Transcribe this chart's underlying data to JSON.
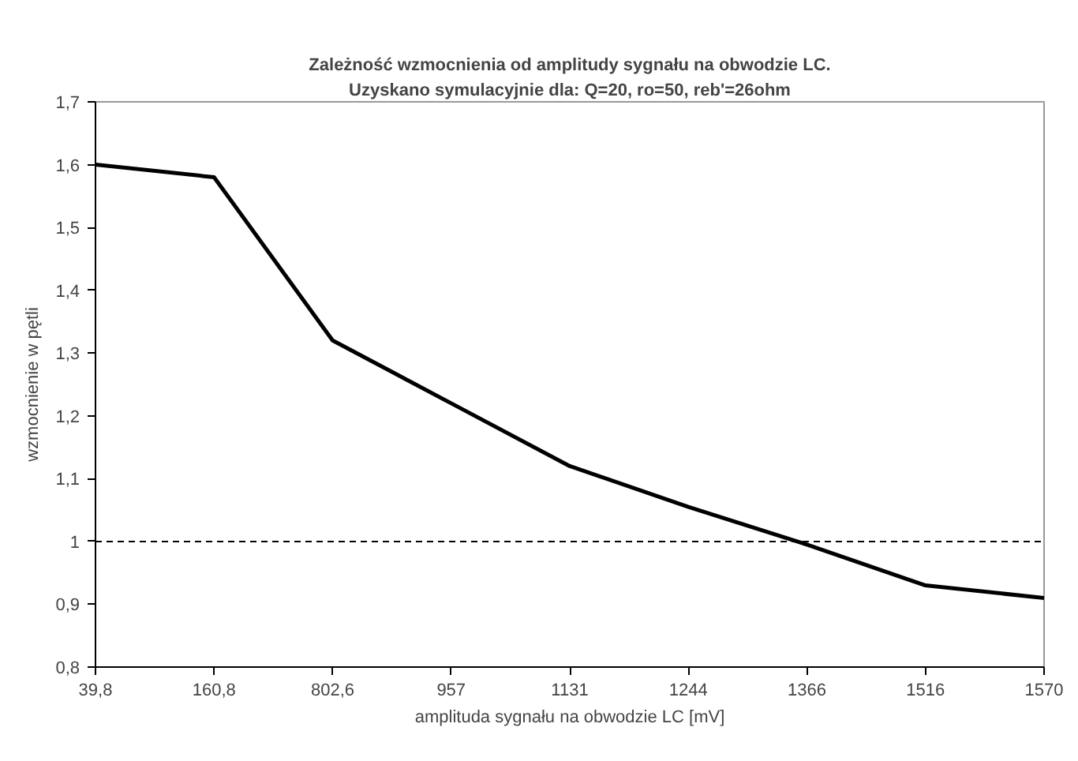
{
  "chart_data": {
    "type": "line",
    "title": "Zależność wzmocnienia od amplitudy sygnału na obwodzie LC.",
    "subtitle": "Uzyskano symulacyjnie dla: Q=20, ro=50, reb'=26ohm",
    "xlabel": "amplituda sygnału na obwodzie LC [mV]",
    "ylabel": "wzmocnienie w pętli",
    "categories": [
      "39,8",
      "160,8",
      "802,6",
      "957",
      "1131",
      "1244",
      "1366",
      "1516",
      "1570"
    ],
    "series": [
      {
        "color": "#000000",
        "values": [
          1.6,
          1.58,
          1.32,
          1.22,
          1.12,
          1.055,
          0.995,
          0.93,
          0.91
        ]
      }
    ],
    "ylim": [
      0.8,
      1.7
    ],
    "yticks": [
      {
        "value": 0.8,
        "label": "0,8"
      },
      {
        "value": 0.9,
        "label": "0,9"
      },
      1,
      {
        "value": 1.1,
        "label": "1,1"
      },
      {
        "value": 1.2,
        "label": "1,2"
      },
      {
        "value": 1.3,
        "label": "1,3"
      },
      {
        "value": 1.4,
        "label": "1,4"
      },
      {
        "value": 1.5,
        "label": "1,5"
      },
      {
        "value": 1.6,
        "label": "1,6"
      },
      {
        "value": 1.7,
        "label": "1,7"
      }
    ],
    "ref_lines": [
      {
        "axis": "y",
        "value": 1,
        "color": "#000000",
        "line_style": "dashed"
      }
    ],
    "grid": false
  }
}
